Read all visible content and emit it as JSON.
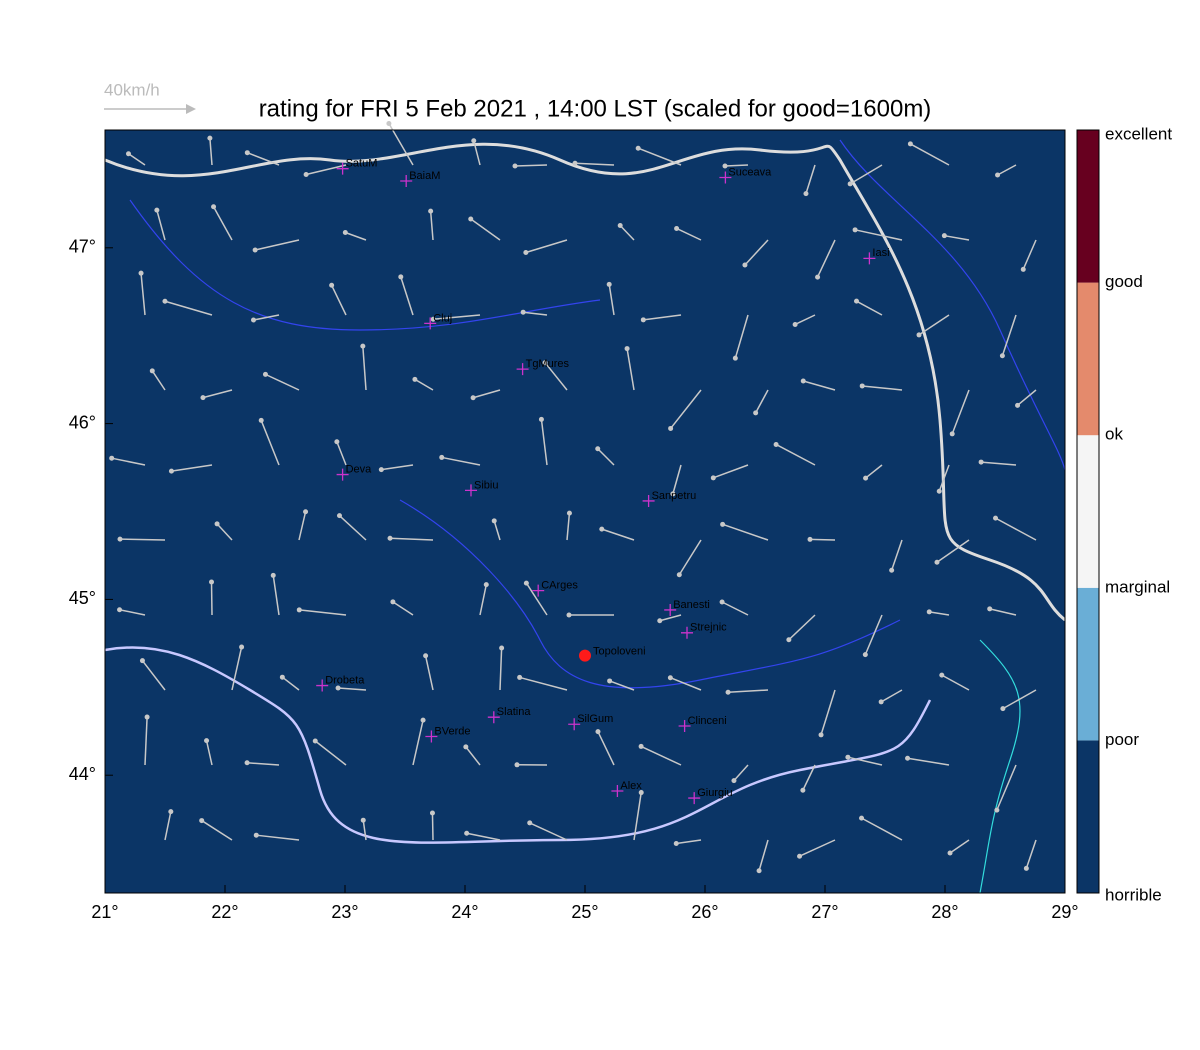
{
  "title": "rating for FRI 5 Feb 2021 , 14:00 LST (scaled for good=1600m)",
  "scale_label": "40km/h",
  "map": {
    "xlim": [
      21,
      29
    ],
    "ylim": [
      43.33,
      47.67
    ],
    "background": "#0b3566",
    "xticks": [
      {
        "value": 21,
        "label": "21°"
      },
      {
        "value": 22,
        "label": "22°"
      },
      {
        "value": 23,
        "label": "23°"
      },
      {
        "value": 24,
        "label": "24°"
      },
      {
        "value": 25,
        "label": "25°"
      },
      {
        "value": 26,
        "label": "26°"
      },
      {
        "value": 27,
        "label": "27°"
      },
      {
        "value": 28,
        "label": "28°"
      },
      {
        "value": 29,
        "label": "29°"
      }
    ],
    "yticks": [
      {
        "value": 44,
        "label": "44°"
      },
      {
        "value": 45,
        "label": "45°"
      },
      {
        "value": 46,
        "label": "46°"
      },
      {
        "value": 47,
        "label": "47°"
      }
    ],
    "cities": [
      {
        "name": "SatuM",
        "lon": 22.98,
        "lat": 47.45
      },
      {
        "name": "BaiaM",
        "lon": 23.51,
        "lat": 47.38
      },
      {
        "name": "Suceava",
        "lon": 26.17,
        "lat": 47.4
      },
      {
        "name": "Iasi",
        "lon": 27.37,
        "lat": 46.94
      },
      {
        "name": "Cluj",
        "lon": 23.71,
        "lat": 46.57
      },
      {
        "name": "TgMures",
        "lon": 24.48,
        "lat": 46.31
      },
      {
        "name": "Deva",
        "lon": 22.98,
        "lat": 45.71
      },
      {
        "name": "Sibiu",
        "lon": 24.05,
        "lat": 45.62
      },
      {
        "name": "Sanpetru",
        "lon": 25.53,
        "lat": 45.56
      },
      {
        "name": "CArges",
        "lon": 24.61,
        "lat": 45.05
      },
      {
        "name": "Banesti",
        "lon": 25.71,
        "lat": 44.94
      },
      {
        "name": "Strejnic",
        "lon": 25.85,
        "lat": 44.81
      },
      {
        "name": "Drobeta",
        "lon": 22.81,
        "lat": 44.51
      },
      {
        "name": "Slatina",
        "lon": 24.24,
        "lat": 44.33
      },
      {
        "name": "SilGum",
        "lon": 24.91,
        "lat": 44.29
      },
      {
        "name": "Clinceni",
        "lon": 25.83,
        "lat": 44.28
      },
      {
        "name": "BVerde",
        "lon": 23.72,
        "lat": 44.22
      },
      {
        "name": "Alex",
        "lon": 25.27,
        "lat": 43.91
      },
      {
        "name": "Giurgiu",
        "lon": 25.91,
        "lat": 43.87
      }
    ],
    "site": {
      "name": "Topoloveni",
      "lon": 25.0,
      "lat": 44.68
    }
  },
  "colorbar": {
    "labels": [
      "horrible",
      "poor",
      "marginal",
      "ok",
      "good",
      "excellent"
    ],
    "colors": [
      "#0b3566",
      "#6aaed6",
      "#f5f5f5",
      "#e48a6c",
      "#67001f"
    ]
  }
}
